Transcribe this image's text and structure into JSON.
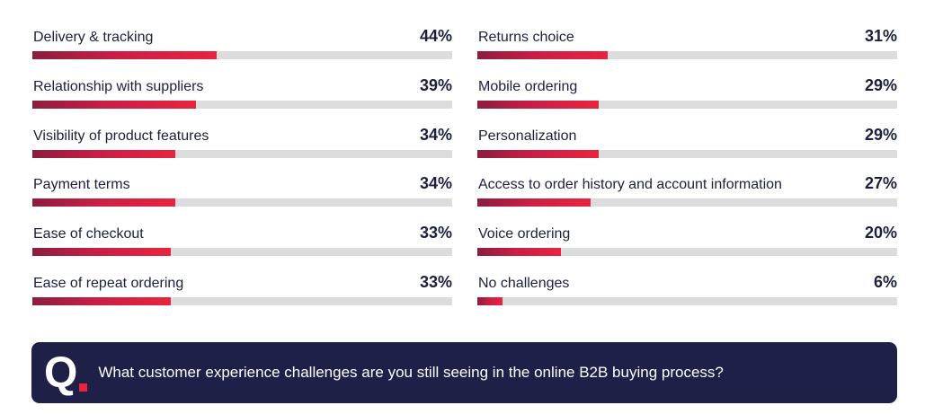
{
  "chart_data": {
    "type": "bar",
    "orientation": "horizontal",
    "value_unit": "%",
    "xlim": [
      0,
      100
    ],
    "grid": false,
    "columns": [
      {
        "items": [
          {
            "label": "Delivery & tracking",
            "value": 44,
            "value_label": "44%"
          },
          {
            "label": "Relationship with suppliers",
            "value": 39,
            "value_label": "39%"
          },
          {
            "label": "Visibility of product features",
            "value": 34,
            "value_label": "34%"
          },
          {
            "label": "Payment terms",
            "value": 34,
            "value_label": "34%"
          },
          {
            "label": "Ease of checkout",
            "value": 33,
            "value_label": "33%"
          },
          {
            "label": "Ease of repeat ordering",
            "value": 33,
            "value_label": "33%"
          }
        ]
      },
      {
        "items": [
          {
            "label": "Returns choice",
            "value": 31,
            "value_label": "31%"
          },
          {
            "label": "Mobile ordering",
            "value": 29,
            "value_label": "29%"
          },
          {
            "label": "Personalization",
            "value": 29,
            "value_label": "29%"
          },
          {
            "label": "Access to order history and account information",
            "value": 27,
            "value_label": "27%"
          },
          {
            "label": "Voice ordering",
            "value": 20,
            "value_label": "20%"
          },
          {
            "label": "No challenges",
            "value": 6,
            "value_label": "6%"
          }
        ]
      }
    ],
    "colors": {
      "bar_start": "#8c1d3e",
      "bar_end": "#e8243f",
      "track": "#dcdcdc",
      "text": "#1c1f3d"
    }
  },
  "question": {
    "mark": "Q",
    "text": "What customer experience challenges are you still seeing in the online B2B buying process?",
    "background": "#1e2048",
    "accent": "#e8243f"
  }
}
